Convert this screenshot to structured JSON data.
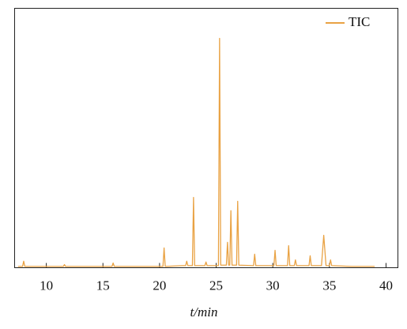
{
  "chart_data": {
    "type": "line",
    "x_label": "t/min",
    "x": [
      7.5,
      7.9,
      8.0,
      8.1,
      10.5,
      11.5,
      11.6,
      11.7,
      15.5,
      15.8,
      15.9,
      16.0,
      19.5,
      20.3,
      20.4,
      20.5,
      22.0,
      22.3,
      22.4,
      22.5,
      22.9,
      23.0,
      23.1,
      24.0,
      24.1,
      24.2,
      25.2,
      25.3,
      25.4,
      25.9,
      26.0,
      26.1,
      26.2,
      26.3,
      26.4,
      26.8,
      26.9,
      27.0,
      28.3,
      28.4,
      28.5,
      30.1,
      30.2,
      30.3,
      31.3,
      31.4,
      31.5,
      31.9,
      32.0,
      32.1,
      33.2,
      33.3,
      33.4,
      34.3,
      34.5,
      34.7,
      35.0,
      35.1,
      35.2,
      37.0,
      39.0
    ],
    "series": [
      {
        "name": "TIC",
        "color": "#e9a243",
        "values": [
          0.5,
          0.5,
          2.5,
          0.5,
          0.5,
          0.5,
          1.2,
          0.5,
          0.5,
          0.5,
          1.8,
          0.5,
          0.5,
          0.5,
          7.6,
          0.5,
          0.8,
          0.8,
          2.5,
          0.8,
          0.8,
          27.1,
          0.8,
          0.8,
          2.2,
          0.8,
          0.8,
          88.4,
          1,
          1,
          9.8,
          1,
          1,
          22,
          1,
          1,
          25.6,
          1,
          0.8,
          5.2,
          0.8,
          0.8,
          6.7,
          0.8,
          0.8,
          8.5,
          0.8,
          0.8,
          3,
          0.8,
          0.8,
          4.6,
          0.8,
          0.8,
          12.5,
          0.8,
          0.8,
          3,
          0.8,
          0.5,
          0.5
        ]
      }
    ],
    "xlim": [
      7.2,
      41.05
    ],
    "xticks": [
      10,
      15,
      20,
      25,
      30,
      35,
      40
    ],
    "ylim": [
      0,
      100
    ],
    "legend": "top-right"
  }
}
